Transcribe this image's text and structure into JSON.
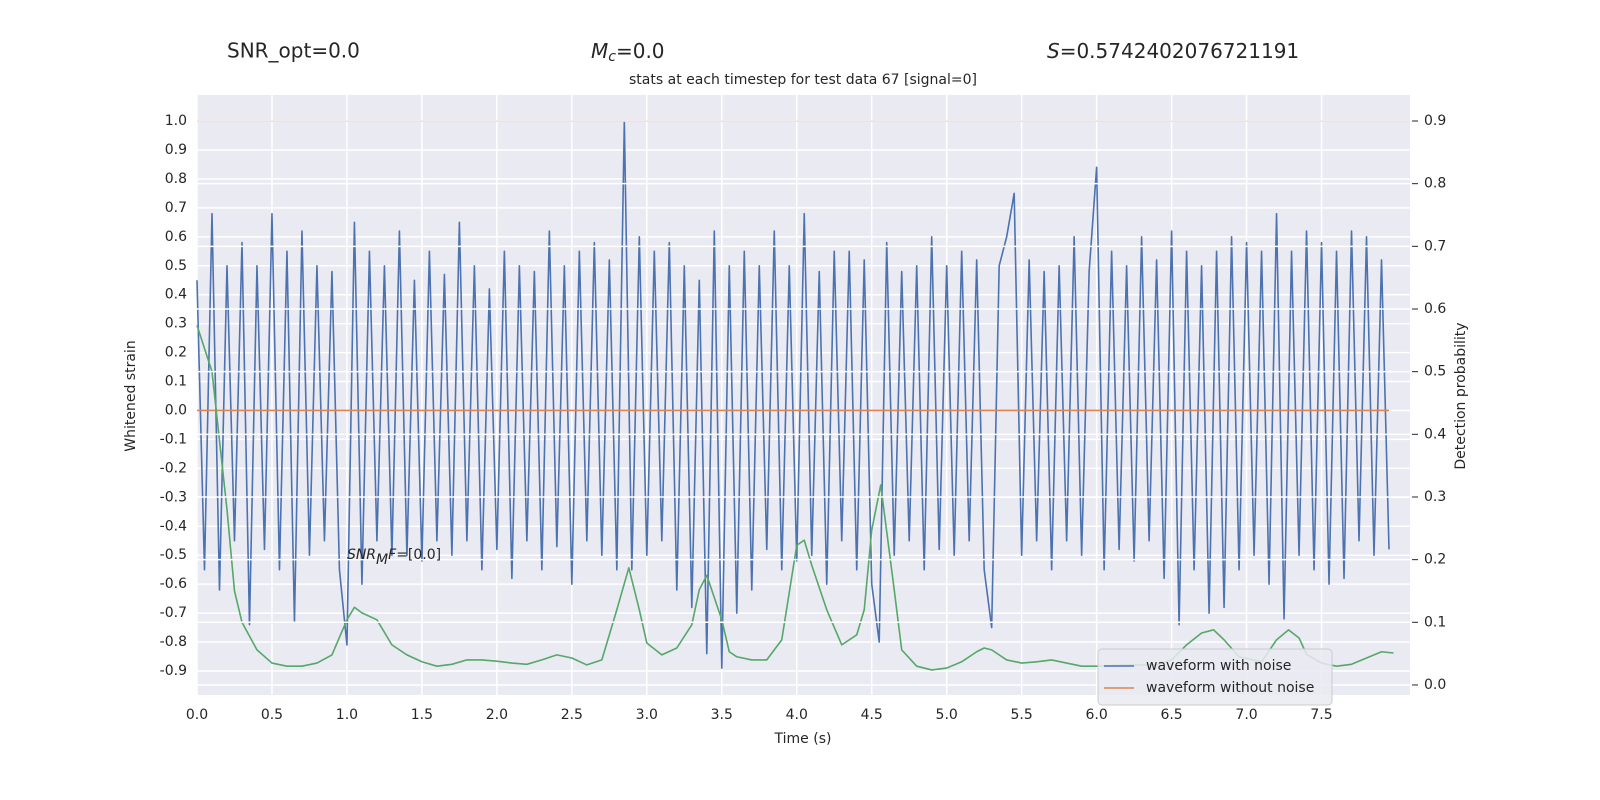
{
  "chart_data": {
    "type": "line",
    "header": {
      "snr_opt": "SNR_opt=0.0",
      "chirp_mass": {
        "symbol": "M",
        "subscript": "c",
        "text": "=0.0"
      },
      "stat": {
        "symbol": "S",
        "text": "=0.5742402076721191"
      }
    },
    "title": "stats at each timestep for test data 67 [signal=0]",
    "annotation": {
      "symbol": "SNR",
      "subscript": "M",
      "after_subscript": "F",
      "text": "=[0.0]",
      "x": 1.0,
      "y": -0.5
    },
    "xlabel": "Time (s)",
    "ylabel": "Whitened strain",
    "y2label": "Detection probability",
    "xlim": [
      0,
      8.09
    ],
    "ylim": [
      -0.983,
      1.09
    ],
    "y2lim": [
      -0.016,
      0.9415
    ],
    "xticks": [
      {
        "value": 0,
        "label": "0.0"
      },
      0.5,
      {
        "value": 1,
        "label": "1.0"
      },
      1.5,
      {
        "value": 2,
        "label": "2.0"
      },
      2.5,
      {
        "value": 3,
        "label": "3.0"
      },
      3.5,
      {
        "value": 4,
        "label": "4.0"
      },
      4.5,
      {
        "value": 5,
        "label": "5.0"
      },
      5.5,
      {
        "value": 6,
        "label": "6.0"
      },
      6.5,
      {
        "value": 7,
        "label": "7.0"
      },
      7.5
    ],
    "yticks": [
      {
        "value": 1,
        "label": "1.0"
      },
      0.9,
      0.8,
      0.7,
      0.6,
      0.5,
      0.4,
      0.3,
      0.2,
      0.1,
      {
        "value": 0,
        "label": "0.0"
      },
      -0.1,
      -0.2,
      -0.3,
      -0.4,
      -0.5,
      -0.6,
      -0.7,
      -0.8,
      -0.9
    ],
    "y2ticks": [
      0.9,
      0.8,
      0.7,
      0.6,
      0.5,
      0.4,
      0.3,
      0.2,
      0.1,
      {
        "value": 0,
        "label": "0.0"
      }
    ],
    "grid": true,
    "legend": "lower right",
    "reference_line": {
      "value": 1.0,
      "color": "#c44e52"
    },
    "series": [
      {
        "name": "waveform with noise",
        "color": "#4c72b0",
        "x": [
          0,
          0.05,
          0.1,
          0.15,
          0.2,
          0.25,
          0.3,
          0.35,
          0.4,
          0.45,
          0.5,
          0.55,
          0.6,
          0.65,
          0.7,
          0.75,
          0.8,
          0.85,
          0.9,
          0.95,
          1.0,
          1.05,
          1.1,
          1.15,
          1.2,
          1.25,
          1.3,
          1.35,
          1.4,
          1.45,
          1.5,
          1.55,
          1.6,
          1.65,
          1.7,
          1.75,
          1.8,
          1.85,
          1.9,
          1.95,
          2.0,
          2.05,
          2.1,
          2.15,
          2.2,
          2.25,
          2.3,
          2.35,
          2.4,
          2.45,
          2.5,
          2.55,
          2.6,
          2.65,
          2.7,
          2.75,
          2.8,
          2.85,
          2.9,
          2.95,
          3.0,
          3.05,
          3.1,
          3.15,
          3.2,
          3.25,
          3.3,
          3.35,
          3.4,
          3.45,
          3.5,
          3.55,
          3.6,
          3.65,
          3.7,
          3.75,
          3.8,
          3.85,
          3.9,
          3.95,
          4.0,
          4.05,
          4.1,
          4.15,
          4.2,
          4.25,
          4.3,
          4.35,
          4.4,
          4.45,
          4.5,
          4.55,
          4.6,
          4.65,
          4.7,
          4.75,
          4.8,
          4.85,
          4.9,
          4.95,
          5.0,
          5.05,
          5.1,
          5.15,
          5.2,
          5.25,
          5.3,
          5.35,
          5.4,
          5.45,
          5.5,
          5.55,
          5.6,
          5.65,
          5.7,
          5.75,
          5.8,
          5.85,
          5.9,
          5.95,
          6.0,
          6.05,
          6.1,
          6.15,
          6.2,
          6.25,
          6.3,
          6.35,
          6.4,
          6.45,
          6.5,
          6.55,
          6.6,
          6.65,
          6.7,
          6.75,
          6.8,
          6.85,
          6.9,
          6.95,
          7.0,
          7.05,
          7.1,
          7.15,
          7.2,
          7.25,
          7.3,
          7.35,
          7.4,
          7.45,
          7.5,
          7.55,
          7.6,
          7.65,
          7.7,
          7.75,
          7.8,
          7.85,
          7.9,
          7.95
        ],
        "values": [
          0.45,
          -0.55,
          0.68,
          -0.62,
          0.5,
          -0.45,
          0.58,
          -0.74,
          0.5,
          -0.48,
          0.68,
          -0.55,
          0.55,
          -0.73,
          0.62,
          -0.5,
          0.5,
          -0.45,
          0.48,
          -0.55,
          -0.81,
          0.65,
          -0.6,
          0.55,
          -0.45,
          0.5,
          -0.5,
          0.62,
          -0.5,
          0.45,
          -0.52,
          0.55,
          -0.45,
          0.47,
          -0.5,
          0.65,
          -0.45,
          0.5,
          -0.55,
          0.42,
          -0.48,
          0.55,
          -0.58,
          0.5,
          -0.45,
          0.48,
          -0.55,
          0.62,
          -0.47,
          0.5,
          -0.6,
          0.55,
          -0.45,
          0.58,
          -0.5,
          0.52,
          -0.55,
          1.0,
          -0.55,
          0.6,
          -0.5,
          0.55,
          -0.45,
          0.58,
          -0.62,
          0.5,
          -0.68,
          0.45,
          -0.84,
          0.62,
          -0.89,
          0.5,
          -0.7,
          0.55,
          -0.62,
          0.5,
          -0.48,
          0.62,
          -0.55,
          0.5,
          -0.52,
          0.68,
          -0.5,
          0.48,
          -0.6,
          0.55,
          -0.45,
          0.55,
          -0.55,
          0.52,
          -0.6,
          -0.8,
          0.58,
          -0.5,
          0.48,
          -0.45,
          0.5,
          -0.55,
          0.6,
          -0.48,
          0.5,
          -0.5,
          0.55,
          -0.45,
          0.52,
          -0.55,
          -0.75,
          0.5,
          0.6,
          0.75,
          -0.5,
          0.52,
          -0.45,
          0.48,
          -0.55,
          0.5,
          -0.45,
          0.6,
          -0.5,
          0.48,
          0.84,
          -0.55,
          0.55,
          -0.48,
          0.5,
          -0.52,
          0.6,
          -0.45,
          0.52,
          -0.58,
          0.62,
          -0.74,
          0.55,
          -0.55,
          0.5,
          -0.7,
          0.55,
          -0.68,
          0.6,
          -0.55,
          0.58,
          -0.5,
          0.55,
          -0.6,
          0.68,
          -0.72,
          0.55,
          -0.5,
          0.62,
          -0.55,
          0.58,
          -0.6,
          0.55,
          -0.58,
          0.62,
          -0.45,
          0.6,
          -0.5,
          0.52,
          -0.48
        ]
      },
      {
        "name": "waveform without noise",
        "color": "#dd8452",
        "x": [
          0,
          7.95
        ],
        "values": [
          0,
          0
        ]
      },
      {
        "color": "#55a868",
        "axis": "y2",
        "x": [
          0,
          0.1,
          0.2,
          0.25,
          0.3,
          0.4,
          0.5,
          0.6,
          0.7,
          0.8,
          0.9,
          1.0,
          1.05,
          1.1,
          1.2,
          1.3,
          1.4,
          1.5,
          1.6,
          1.7,
          1.8,
          1.9,
          2.0,
          2.1,
          2.2,
          2.3,
          2.4,
          2.5,
          2.6,
          2.7,
          2.8,
          2.88,
          2.95,
          3.0,
          3.1,
          3.2,
          3.3,
          3.35,
          3.4,
          3.5,
          3.55,
          3.6,
          3.7,
          3.8,
          3.9,
          4.0,
          4.05,
          4.1,
          4.2,
          4.3,
          4.4,
          4.45,
          4.5,
          4.56,
          4.65,
          4.7,
          4.8,
          4.9,
          5.0,
          5.1,
          5.2,
          5.25,
          5.3,
          5.4,
          5.5,
          5.6,
          5.7,
          5.8,
          5.9,
          6.0,
          6.2,
          6.4,
          6.5,
          6.6,
          6.7,
          6.78,
          6.85,
          6.95,
          7.1,
          7.2,
          7.28,
          7.35,
          7.4,
          7.5,
          7.6,
          7.7,
          7.8,
          7.9,
          7.98
        ],
        "values": [
          0.574,
          0.5,
          0.28,
          0.15,
          0.1,
          0.056,
          0.035,
          0.03,
          0.03,
          0.035,
          0.048,
          0.104,
          0.124,
          0.115,
          0.104,
          0.064,
          0.048,
          0.037,
          0.03,
          0.033,
          0.04,
          0.04,
          0.038,
          0.035,
          0.033,
          0.04,
          0.048,
          0.043,
          0.032,
          0.04,
          0.12,
          0.187,
          0.12,
          0.067,
          0.048,
          0.059,
          0.096,
          0.152,
          0.175,
          0.104,
          0.053,
          0.045,
          0.04,
          0.04,
          0.072,
          0.223,
          0.231,
          0.191,
          0.12,
          0.064,
          0.08,
          0.12,
          0.247,
          0.319,
          0.152,
          0.056,
          0.03,
          0.024,
          0.027,
          0.037,
          0.053,
          0.059,
          0.056,
          0.04,
          0.035,
          0.037,
          0.04,
          0.035,
          0.03,
          0.03,
          0.032,
          0.032,
          0.04,
          0.064,
          0.083,
          0.088,
          0.072,
          0.045,
          0.037,
          0.072,
          0.088,
          0.075,
          0.049,
          0.035,
          0.03,
          0.033,
          0.043,
          0.053,
          0.051
        ]
      }
    ]
  }
}
